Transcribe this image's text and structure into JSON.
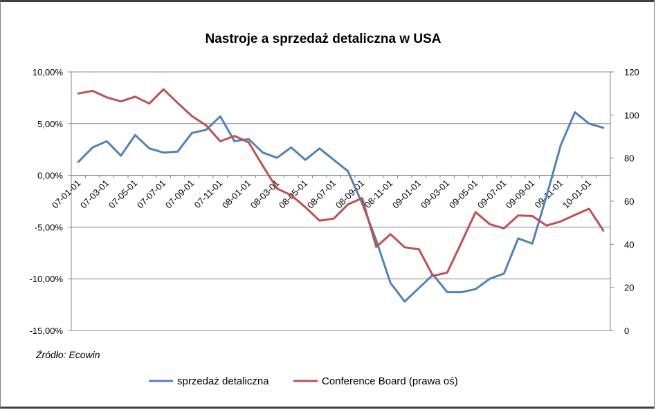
{
  "chart_data": {
    "type": "line",
    "title": "Nastroje a sprzedaż detaliczna w USA",
    "source": "Źródło: Ecowin",
    "y_left": {
      "min": -15,
      "max": 10,
      "step": 5,
      "tick_labels": [
        "10,00%",
        "5,00%",
        "0,00%",
        "-5,00%",
        "-10,00%",
        "-15,00%"
      ]
    },
    "y_right": {
      "min": 0,
      "max": 120,
      "step": 20,
      "tick_labels": [
        "120",
        "100",
        "80",
        "60",
        "40",
        "20",
        "0"
      ]
    },
    "x_tick_labels": [
      "07-01-01",
      "07-03-01",
      "07-05-01",
      "07-07-01",
      "07-09-01",
      "07-11-01",
      "08-01-01",
      "08-03-01",
      "08-05-01",
      "08-07-01",
      "08-09-01",
      "08-11-01",
      "09-01-01",
      "09-03-01",
      "09-05-01",
      "09-07-01",
      "09-09-01",
      "09-11-01",
      "10-01-01"
    ],
    "periods": 38,
    "series": [
      {
        "name": "sprzedaż detaliczna",
        "axis": "left",
        "color": "#4f81bd",
        "values": [
          1.3,
          2.7,
          3.3,
          1.9,
          3.9,
          2.6,
          2.2,
          2.3,
          4.1,
          4.4,
          5.7,
          3.3,
          3.5,
          2.2,
          1.7,
          2.7,
          1.5,
          2.6,
          1.5,
          0.4,
          -2.7,
          -6.3,
          -10.4,
          -12.2,
          -10.9,
          -9.6,
          -11.3,
          -11.3,
          -11.0,
          -10.0,
          -9.5,
          -6.1,
          -6.6,
          -2.0,
          2.9,
          6.1,
          5.0,
          4.6
        ]
      },
      {
        "name": "Conference Board (prawa oś)",
        "axis": "right",
        "color": "#c0504d",
        "values": [
          110.0,
          111.2,
          108.2,
          106.3,
          108.5,
          105.3,
          111.9,
          105.6,
          99.5,
          95.2,
          87.8,
          90.3,
          87.3,
          76.4,
          65.9,
          62.8,
          57.2,
          51.0,
          51.9,
          58.5,
          61.4,
          38.8,
          44.7,
          38.6,
          37.7,
          25.3,
          26.9,
          40.8,
          54.9,
          49.3,
          47.4,
          53.4,
          53.1,
          48.7,
          50.6,
          53.6,
          56.5,
          46.4
        ]
      }
    ]
  }
}
